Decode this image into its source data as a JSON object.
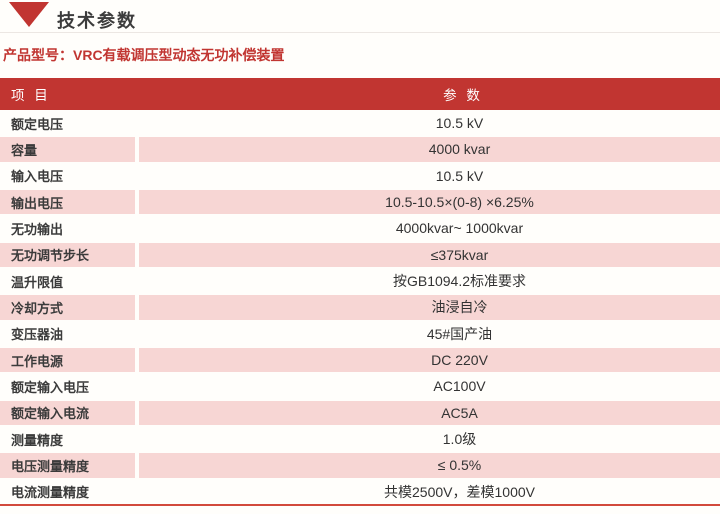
{
  "page": {
    "title": "技术参数",
    "subtitle_label": "产品型号：VRC有载调压型动态无功补偿装置"
  },
  "colors": {
    "accent_red": "#C13531",
    "row_pink": "#F7D6D4",
    "bottom_rule_red": "#D24A3C"
  },
  "icons": {
    "section_marker": "down-triangle"
  },
  "table": {
    "headers": {
      "item": "项 目",
      "param": "参 数"
    },
    "rows": [
      {
        "label": "额定电压",
        "value": "10.5 kV"
      },
      {
        "label": "容量",
        "value": "4000 kvar"
      },
      {
        "label": "输入电压",
        "value": "10.5 kV"
      },
      {
        "label": "输出电压",
        "value": "10.5-10.5×(0-8) ×6.25%"
      },
      {
        "label": "无功输出",
        "value": "4000kvar~ 1000kvar"
      },
      {
        "label": "无功调节步长",
        "value": "≤375kvar"
      },
      {
        "label": "温升限值",
        "value": "按GB1094.2标准要求"
      },
      {
        "label": "冷却方式",
        "value": "油浸自冷"
      },
      {
        "label": "变压器油",
        "value": "45#国产油"
      },
      {
        "label": "工作电源",
        "value": "DC 220V"
      },
      {
        "label": "额定输入电压",
        "value": "AC100V"
      },
      {
        "label": "额定输入电流",
        "value": "AC5A"
      },
      {
        "label": "测量精度",
        "value": "1.0级"
      },
      {
        "label": "电压测量精度",
        "value": "≤ 0.5%"
      },
      {
        "label": "电流测量精度",
        "value": "共模2500V，差模1000V"
      }
    ]
  }
}
